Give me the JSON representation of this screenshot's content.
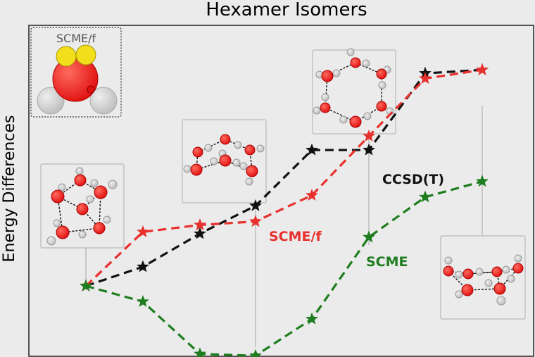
{
  "chart_data": {
    "type": "line",
    "title": "Hexamer Isomers",
    "xlabel": "",
    "ylabel": "Energy Differences",
    "x": [
      1,
      2,
      3,
      4,
      5,
      6,
      7,
      8
    ],
    "ylim": [
      0,
      10
    ],
    "grid": false,
    "series": [
      {
        "name": "CCSD(T)",
        "color": "#111111",
        "values": [
          2.2,
          2.75,
          3.7,
          4.5,
          6.1,
          6.1,
          8.3,
          8.4
        ]
      },
      {
        "name": "SCME/f",
        "color": "#e8302d",
        "values": [
          2.2,
          3.75,
          3.95,
          4.05,
          4.8,
          6.5,
          8.15,
          8.4
        ]
      },
      {
        "name": "SCME",
        "color": "#1e7d1e",
        "values": [
          2.2,
          1.75,
          0.25,
          0.2,
          1.25,
          3.6,
          4.75,
          5.2
        ]
      }
    ],
    "inset_label": "SCME/f"
  }
}
